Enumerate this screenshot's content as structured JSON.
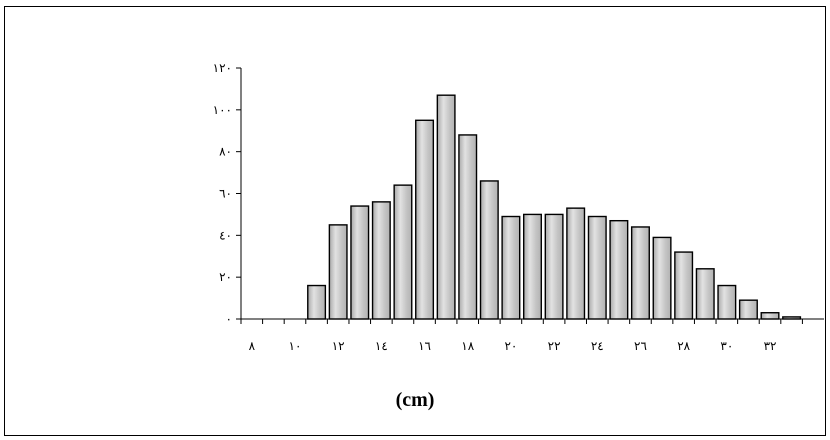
{
  "chart_data": {
    "type": "bar",
    "xlabel": "(cm)",
    "ylabel": "",
    "title": "",
    "ylim": [
      0,
      120
    ],
    "y_ticks": [
      {
        "value": 0,
        "label": "٠"
      },
      {
        "value": 20,
        "label": "٢٠"
      },
      {
        "value": 40,
        "label": "٤٠"
      },
      {
        "value": 60,
        "label": "٦٠"
      },
      {
        "value": 80,
        "label": "٨٠"
      },
      {
        "value": 100,
        "label": "١٠٠"
      },
      {
        "value": 120,
        "label": "١٢٠"
      }
    ],
    "x_ticks": [
      {
        "value": 8,
        "label": "٨"
      },
      {
        "value": 10,
        "label": "١٠"
      },
      {
        "value": 12,
        "label": "١٢"
      },
      {
        "value": 14,
        "label": "١٤"
      },
      {
        "value": 16,
        "label": "١٦"
      },
      {
        "value": 18,
        "label": "١٨"
      },
      {
        "value": 20,
        "label": "٢٠"
      },
      {
        "value": 22,
        "label": "٢٢"
      },
      {
        "value": 24,
        "label": "٢٤"
      },
      {
        "value": 26,
        "label": "٢٦"
      },
      {
        "value": 28,
        "label": "٢٨"
      },
      {
        "value": 30,
        "label": "٣٠"
      },
      {
        "value": 32,
        "label": "٣٢"
      }
    ],
    "xlim": [
      7.5,
      34.5
    ],
    "bin_width": 1,
    "bins": [
      {
        "x": 11,
        "value": 16
      },
      {
        "x": 12,
        "value": 45
      },
      {
        "x": 13,
        "value": 54
      },
      {
        "x": 14,
        "value": 56
      },
      {
        "x": 15,
        "value": 64
      },
      {
        "x": 16,
        "value": 95
      },
      {
        "x": 17,
        "value": 107
      },
      {
        "x": 18,
        "value": 88
      },
      {
        "x": 19,
        "value": 66
      },
      {
        "x": 20,
        "value": 49
      },
      {
        "x": 21,
        "value": 50
      },
      {
        "x": 22,
        "value": 50
      },
      {
        "x": 23,
        "value": 53
      },
      {
        "x": 24,
        "value": 49
      },
      {
        "x": 25,
        "value": 47
      },
      {
        "x": 26,
        "value": 44
      },
      {
        "x": 27,
        "value": 39
      },
      {
        "x": 28,
        "value": 32
      },
      {
        "x": 29,
        "value": 24
      },
      {
        "x": 30,
        "value": 16
      },
      {
        "x": 31,
        "value": 9
      },
      {
        "x": 32,
        "value": 3
      },
      {
        "x": 33,
        "value": 1
      }
    ],
    "grid": false,
    "bar_fill": "#d4d4d4",
    "bar_stroke": "#000000"
  }
}
